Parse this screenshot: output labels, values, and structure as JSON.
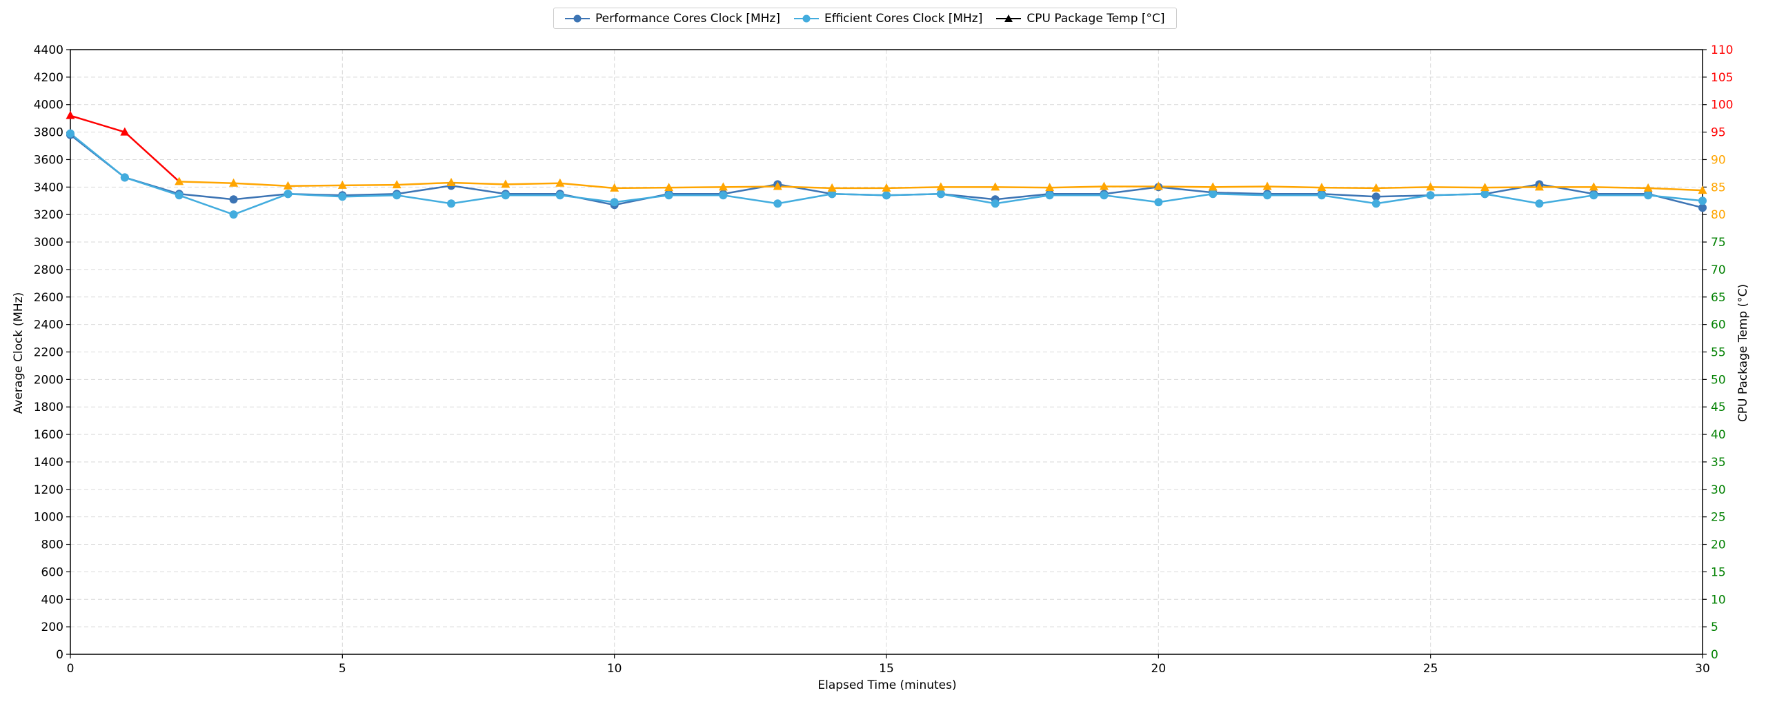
{
  "chart_data": {
    "type": "line",
    "xlabel": "Elapsed Time (minutes)",
    "ylabel": "Average Clock (MHz)",
    "y2label": "CPU Package Temp (°C)",
    "xlim": [
      0,
      30
    ],
    "ylim": [
      0,
      4400
    ],
    "y2lim": [
      0,
      110
    ],
    "x_ticks": [
      0,
      5,
      10,
      15,
      20,
      25,
      30
    ],
    "y_ticks": [
      0,
      200,
      400,
      600,
      800,
      1000,
      1200,
      1400,
      1600,
      1800,
      2000,
      2200,
      2400,
      2600,
      2800,
      3000,
      3200,
      3400,
      3600,
      3800,
      4000,
      4200,
      4400
    ],
    "y2_ticks": [
      0,
      5,
      10,
      15,
      20,
      25,
      30,
      35,
      40,
      45,
      50,
      55,
      60,
      65,
      70,
      75,
      80,
      85,
      90,
      95,
      100,
      105,
      110
    ],
    "y2_tick_colors": {
      "below_80": "#008000",
      "80_to_90": "#FFA500",
      "above_90": "#FF0000"
    },
    "grid": true,
    "legend_position": "top-center",
    "x": [
      0,
      1,
      2,
      3,
      4,
      5,
      6,
      7,
      8,
      9,
      10,
      11,
      12,
      13,
      14,
      15,
      16,
      17,
      18,
      19,
      20,
      21,
      22,
      23,
      24,
      25,
      26,
      27,
      28,
      29,
      30
    ],
    "series": [
      {
        "name": "Performance Cores Clock [MHz]",
        "color": "#3C74B4",
        "marker": "circle",
        "axis": "left",
        "values": [
          3780,
          3470,
          3350,
          3310,
          3350,
          3340,
          3350,
          3410,
          3350,
          3350,
          3270,
          3350,
          3350,
          3420,
          3350,
          3340,
          3350,
          3310,
          3350,
          3350,
          3400,
          3360,
          3350,
          3350,
          3330,
          3340,
          3350,
          3420,
          3350,
          3350,
          3250
        ]
      },
      {
        "name": "Efficient Cores Clock [MHz]",
        "color": "#42ACDE",
        "marker": "circle",
        "axis": "left",
        "values": [
          3790,
          3470,
          3340,
          3200,
          3350,
          3330,
          3340,
          3280,
          3340,
          3340,
          3290,
          3340,
          3340,
          3280,
          3350,
          3340,
          3350,
          3280,
          3340,
          3340,
          3290,
          3350,
          3340,
          3340,
          3280,
          3340,
          3350,
          3280,
          3340,
          3340,
          3300
        ]
      },
      {
        "name": "CPU Package Temp [°C]",
        "color": "#000000",
        "marker": "triangle",
        "axis": "right",
        "segment_colors": {
          "above_90": "#FF0000",
          "80_to_90": "#FFA500"
        },
        "values": [
          98,
          95,
          86,
          85.7,
          85.2,
          85.3,
          85.4,
          85.8,
          85.5,
          85.7,
          84.8,
          84.9,
          85,
          85.1,
          84.8,
          84.8,
          85,
          85,
          84.9,
          85.1,
          85.1,
          85,
          85.1,
          84.9,
          84.8,
          85,
          84.9,
          85,
          85,
          84.8,
          84.4
        ]
      }
    ]
  }
}
